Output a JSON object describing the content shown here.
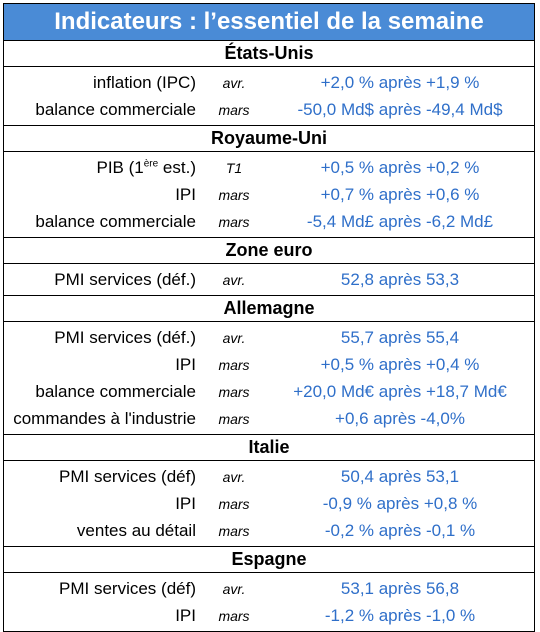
{
  "title": "Indicateurs : l’essentiel de la semaine",
  "sections": [
    {
      "name": "États-Unis",
      "rows": [
        {
          "label": "inflation (IPC)",
          "period": "avr.",
          "value": "+2,0 % après +1,9 %"
        },
        {
          "label": "balance commerciale",
          "period": "mars",
          "value": "-50,0 Md$ après -49,4 Md$"
        }
      ]
    },
    {
      "name": "Royaume-Uni",
      "rows": [
        {
          "label_pre": "PIB (1",
          "label_sup": "ère",
          "label_post": " est.)",
          "period": "T1",
          "value": "+0,5 % après +0,2 %"
        },
        {
          "label": "IPI",
          "period": "mars",
          "value": "+0,7 % après +0,6 %"
        },
        {
          "label": "balance commerciale",
          "period": "mars",
          "value": "-5,4 Md£ après -6,2 Md£"
        }
      ]
    },
    {
      "name": "Zone euro",
      "rows": [
        {
          "label": "PMI services (déf.)",
          "period": "avr.",
          "value": "52,8 après 53,3"
        }
      ]
    },
    {
      "name": "Allemagne",
      "rows": [
        {
          "label": "PMI services (déf.)",
          "period": "avr.",
          "value": "55,7 après 55,4"
        },
        {
          "label": "IPI",
          "period": "mars",
          "value": "+0,5 % après +0,4 %"
        },
        {
          "label": "balance commerciale",
          "period": "mars",
          "value": "+20,0 Md€ après +18,7 Md€"
        },
        {
          "label": "commandes à l'industrie",
          "period": "mars",
          "value": "+0,6 après -4,0%"
        }
      ]
    },
    {
      "name": "Italie",
      "rows": [
        {
          "label": "PMI services (déf)",
          "period": "avr.",
          "value": "50,4 après 53,1"
        },
        {
          "label": "IPI",
          "period": "mars",
          "value": "-0,9 % après +0,8 %"
        },
        {
          "label": "ventes au détail",
          "period": "mars",
          "value": "-0,2 % après -0,1 %"
        }
      ]
    },
    {
      "name": "Espagne",
      "rows": [
        {
          "label": "PMI services (déf)",
          "period": "avr.",
          "value": "53,1 après 56,8"
        },
        {
          "label": "IPI",
          "period": "mars",
          "value": "-1,2 % après -1,0 %"
        }
      ]
    }
  ],
  "colors": {
    "header_bg": "#4a8bd6",
    "value_text": "#2f6fc9"
  }
}
